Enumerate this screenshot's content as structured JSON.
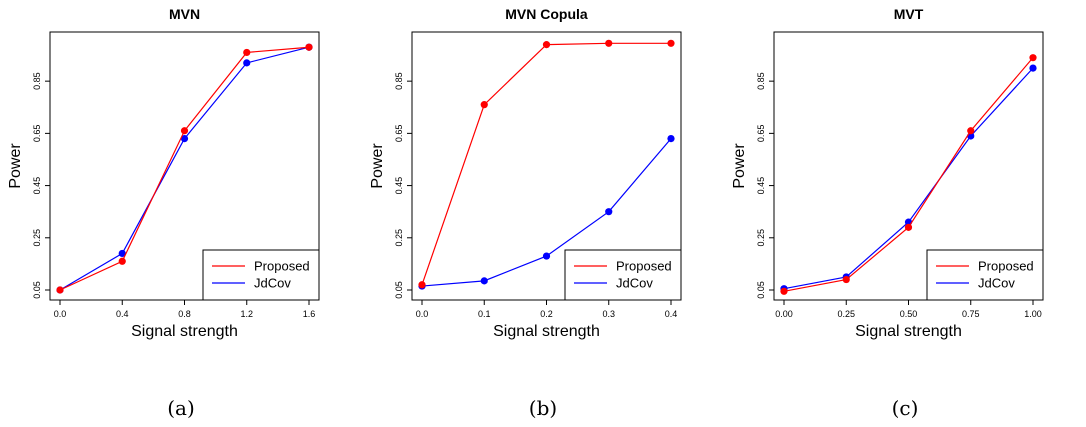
{
  "legend_colors": {
    "proposed": "#ff0000",
    "jdcov": "#0000ff"
  },
  "chart_data": [
    {
      "type": "line",
      "title": "MVN",
      "xlabel": "Signal strength",
      "ylabel": "Power",
      "caption": "(a)",
      "legend_position": "bottom-right",
      "x": [
        0.0,
        0.4,
        0.8,
        1.2,
        1.6
      ],
      "xticks": [
        "0.0",
        "0.4",
        "0.8",
        "1.2",
        "1.6"
      ],
      "xlim": [
        0.0,
        1.6
      ],
      "yticks": [
        "0.05",
        "0.25",
        "0.45",
        "0.65",
        "0.85"
      ],
      "ylim": [
        0.05,
        1.0
      ],
      "series": [
        {
          "name": "Proposed",
          "color": "#ff0000",
          "values": [
            0.05,
            0.16,
            0.66,
            0.96,
            0.98
          ]
        },
        {
          "name": "JdCov",
          "color": "#0000ff",
          "values": [
            0.05,
            0.19,
            0.63,
            0.92,
            0.98
          ]
        }
      ]
    },
    {
      "type": "line",
      "title": "MVN Copula",
      "xlabel": "Signal strength",
      "ylabel": "Power",
      "caption": "(b)",
      "legend_position": "bottom-right",
      "x": [
        0.0,
        0.1,
        0.2,
        0.3,
        0.4
      ],
      "xticks": [
        "0.0",
        "0.1",
        "0.2",
        "0.3",
        "0.4"
      ],
      "xlim": [
        0.0,
        0.4
      ],
      "yticks": [
        "0.05",
        "0.25",
        "0.45",
        "0.65",
        "0.85"
      ],
      "ylim": [
        0.05,
        1.0
      ],
      "series": [
        {
          "name": "Proposed",
          "color": "#ff0000",
          "values": [
            0.07,
            0.76,
            0.99,
            0.995,
            0.995
          ]
        },
        {
          "name": "JdCov",
          "color": "#0000ff",
          "values": [
            0.065,
            0.085,
            0.18,
            0.35,
            0.63
          ]
        }
      ]
    },
    {
      "type": "line",
      "title": "MVT",
      "xlabel": "Signal strength",
      "ylabel": "Power",
      "caption": "(c)",
      "legend_position": "bottom-right",
      "x": [
        0.0,
        0.25,
        0.5,
        0.75,
        1.0
      ],
      "xticks": [
        "0.00",
        "0.25",
        "0.50",
        "0.75",
        "1.00"
      ],
      "xlim": [
        0.0,
        1.0
      ],
      "yticks": [
        "0.05",
        "0.25",
        "0.45",
        "0.65",
        "0.85"
      ],
      "ylim": [
        0.05,
        1.0
      ],
      "series": [
        {
          "name": "Proposed",
          "color": "#ff0000",
          "values": [
            0.045,
            0.09,
            0.29,
            0.66,
            0.94
          ]
        },
        {
          "name": "JdCov",
          "color": "#0000ff",
          "values": [
            0.055,
            0.1,
            0.31,
            0.64,
            0.9
          ]
        }
      ]
    }
  ]
}
